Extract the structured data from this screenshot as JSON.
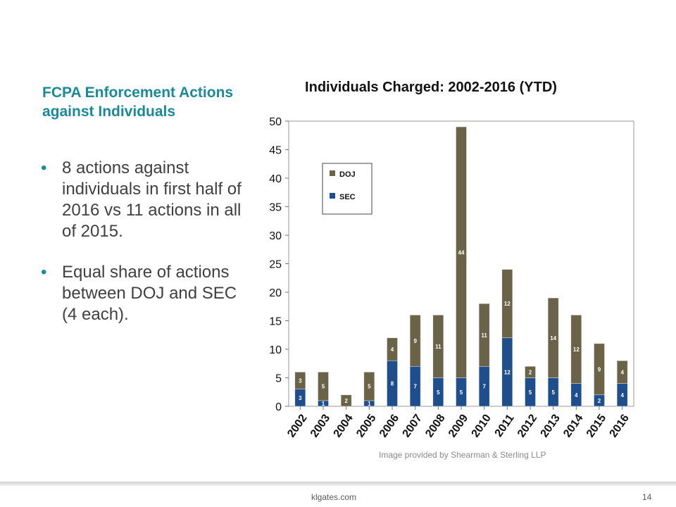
{
  "slide": {
    "heading": "FCPA Enforcement Actions against Individuals",
    "bullets": [
      "8 actions against individuals in first half of 2016 vs 11 actions in all of 2015.",
      "Equal share of actions between DOJ and SEC (4 each)."
    ],
    "bullet_glyph": "•",
    "credit": "Image provided by Shearman & Sterling LLP",
    "footer_site": "klgates.com",
    "page_number": "14"
  },
  "chart_data": {
    "type": "bar",
    "stacked": true,
    "title": "Individuals Charged: 2002-2016 (YTD)",
    "categories": [
      "2002",
      "2003",
      "2004",
      "2005",
      "2006",
      "2007",
      "2008",
      "2009",
      "2010",
      "2011",
      "2012",
      "2013",
      "2014",
      "2015",
      "2016"
    ],
    "series": [
      {
        "name": "SEC",
        "color": "#1f4e8c",
        "values": [
          3,
          1,
          0,
          1,
          8,
          7,
          5,
          5,
          7,
          12,
          5,
          5,
          4,
          2,
          4
        ]
      },
      {
        "name": "DOJ",
        "color": "#6b6347",
        "values": [
          3,
          5,
          2,
          5,
          4,
          9,
          11,
          44,
          11,
          12,
          2,
          14,
          12,
          9,
          4
        ]
      }
    ],
    "legend_order": [
      "DOJ",
      "SEC"
    ],
    "legend_placement": "top-left",
    "ylim": [
      0,
      50
    ],
    "yticks": [
      "0",
      "5",
      "10",
      "15",
      "20",
      "25",
      "30",
      "35",
      "40",
      "45",
      "50"
    ],
    "grid": false
  }
}
